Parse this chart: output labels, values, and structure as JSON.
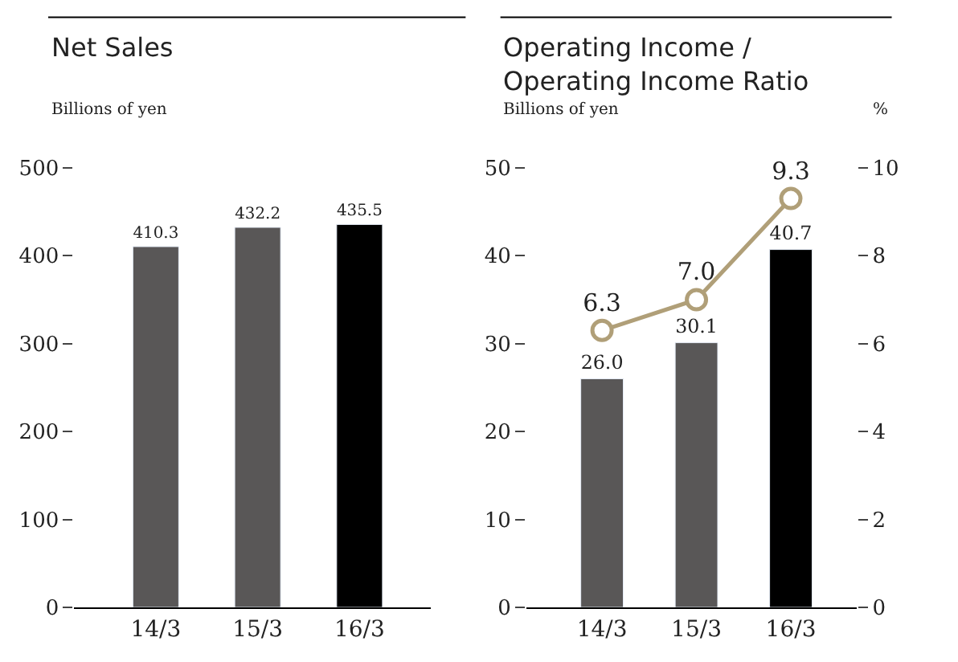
{
  "chart_data": [
    {
      "type": "bar",
      "title": "Net Sales",
      "ylabel": "Billions of yen",
      "categories": [
        "14/3",
        "15/3",
        "16/3"
      ],
      "values": [
        410.3,
        432.2,
        435.5
      ],
      "colors": [
        "#595757",
        "#595757",
        "#000000"
      ],
      "ylim": [
        0,
        500
      ],
      "yticks": [
        0,
        100,
        200,
        300,
        400,
        500
      ],
      "data_labels": true
    },
    {
      "type": "bar",
      "title": "Operating Income /\nOperating Income Ratio",
      "ylabel": "Billions of yen",
      "y2label": "%",
      "categories": [
        "14/3",
        "15/3",
        "16/3"
      ],
      "ylim": [
        0,
        50
      ],
      "yticks": [
        0,
        10,
        20,
        30,
        40,
        50
      ],
      "y2lim": [
        0,
        10
      ],
      "y2ticks": [
        0,
        2,
        4,
        6,
        8,
        10
      ],
      "series": [
        {
          "type": "bar",
          "colors": [
            "#595757",
            "#595757",
            "#000000"
          ],
          "values": [
            26.0,
            30.1,
            40.7
          ],
          "value_labels": [
            "26.0",
            "30.1",
            "40.7"
          ]
        },
        {
          "type": "line",
          "axis": "y2",
          "color": "#b09f78",
          "marker": "circle",
          "values": [
            6.3,
            7.0,
            9.3
          ],
          "value_labels": [
            "6.3",
            "7.0",
            "9.3"
          ]
        }
      ]
    }
  ]
}
